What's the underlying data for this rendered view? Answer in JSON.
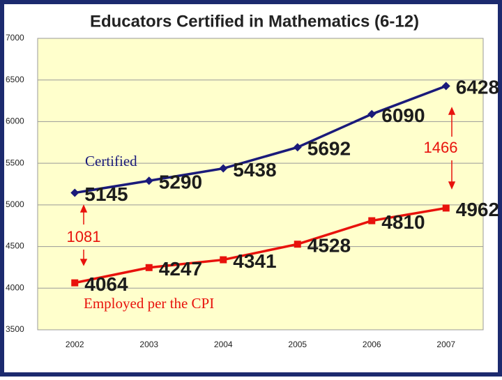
{
  "chart_data": {
    "type": "line",
    "title": "Educators Certified in Mathematics (6-12)",
    "categories": [
      "2002",
      "2003",
      "2004",
      "2005",
      "2006",
      "2007"
    ],
    "series": [
      {
        "name": "Certified",
        "color": "#1a1a7a",
        "marker": "diamond",
        "values": [
          5145,
          5290,
          5438,
          5692,
          6090,
          6428
        ]
      },
      {
        "name": "Employed per the CPI",
        "color": "#e8120c",
        "marker": "square",
        "values": [
          4064,
          4247,
          4341,
          4528,
          4810,
          4962
        ]
      }
    ],
    "annotations": [
      "1081",
      "1466"
    ],
    "ylim": [
      3500,
      7000
    ],
    "yticks": [
      3500,
      4000,
      4500,
      5000,
      5500,
      6000,
      6500,
      7000
    ],
    "grid": true
  }
}
